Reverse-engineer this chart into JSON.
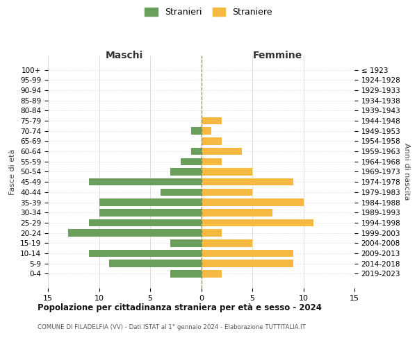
{
  "age_groups": [
    "100+",
    "95-99",
    "90-94",
    "85-89",
    "80-84",
    "75-79",
    "70-74",
    "65-69",
    "60-64",
    "55-59",
    "50-54",
    "45-49",
    "40-44",
    "35-39",
    "30-34",
    "25-29",
    "20-24",
    "15-19",
    "10-14",
    "5-9",
    "0-4"
  ],
  "birth_years": [
    "≤ 1923",
    "1924-1928",
    "1929-1933",
    "1934-1938",
    "1939-1943",
    "1944-1948",
    "1949-1953",
    "1954-1958",
    "1959-1963",
    "1964-1968",
    "1969-1973",
    "1974-1978",
    "1979-1983",
    "1984-1988",
    "1989-1993",
    "1994-1998",
    "1999-2003",
    "2004-2008",
    "2009-2013",
    "2014-2018",
    "2019-2023"
  ],
  "maschi": [
    0,
    0,
    0,
    0,
    0,
    0,
    1,
    0,
    1,
    2,
    3,
    11,
    4,
    10,
    10,
    11,
    13,
    3,
    11,
    9,
    3
  ],
  "femmine": [
    0,
    0,
    0,
    0,
    0,
    2,
    1,
    2,
    4,
    2,
    5,
    9,
    5,
    10,
    7,
    11,
    2,
    5,
    9,
    9,
    2
  ],
  "color_maschi": "#6a9e5b",
  "color_femmine": "#f5b942",
  "title": "Popolazione per cittadinanza straniera per età e sesso - 2024",
  "subtitle": "COMUNE DI FILADELFIA (VV) - Dati ISTAT al 1° gennaio 2024 - Elaborazione TUTTITALIA.IT",
  "label_maschi": "Stranieri",
  "label_femmine": "Straniere",
  "xlabel_left": "Maschi",
  "xlabel_right": "Femmine",
  "ylabel_left": "Fasce di età",
  "ylabel_right": "Anni di nascita",
  "xlim": 15,
  "background_color": "#ffffff",
  "grid_color": "#d0d0d0"
}
